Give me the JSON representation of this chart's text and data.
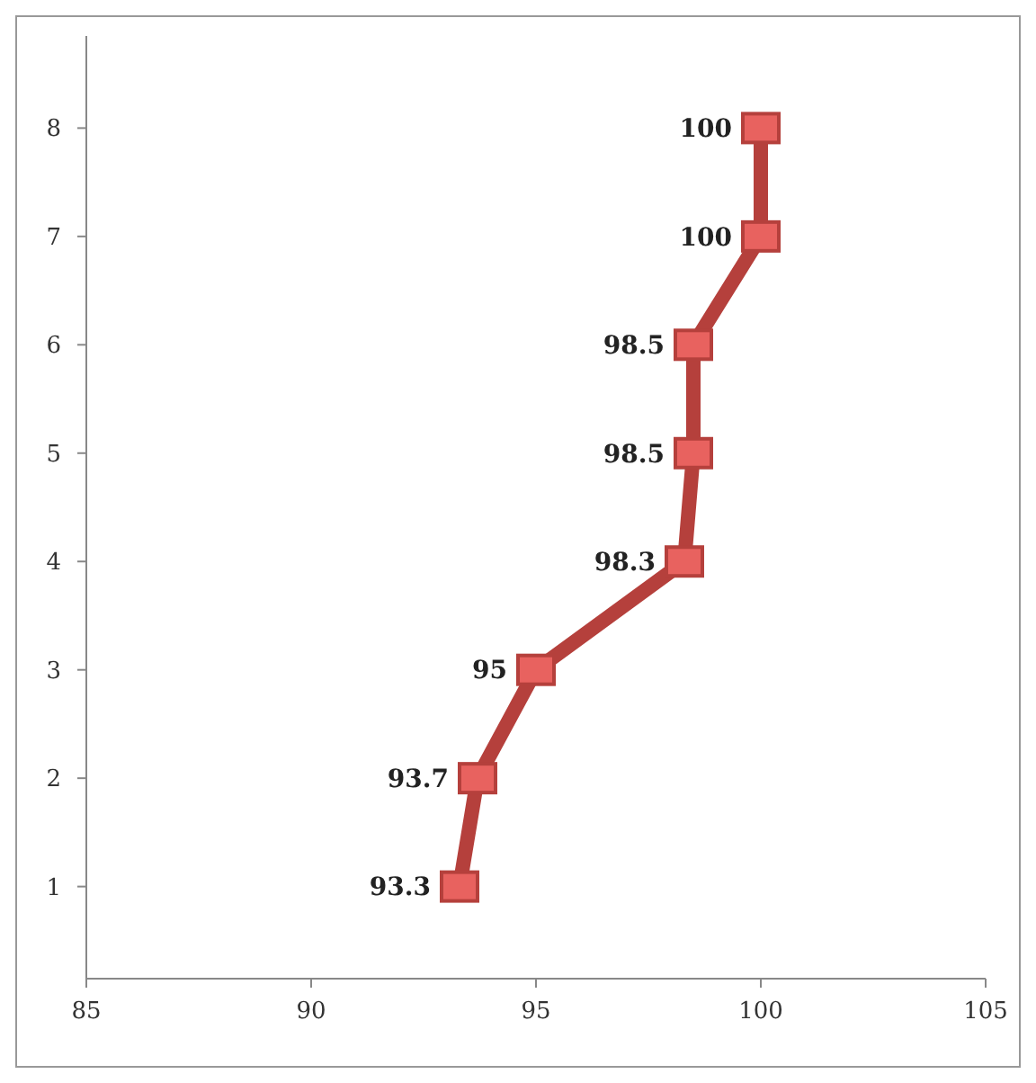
{
  "chart_data": {
    "type": "line",
    "orientation": "horizontal",
    "categories": [
      "8",
      "7",
      "6",
      "5",
      "4",
      "3",
      "2",
      "1"
    ],
    "series": [
      {
        "color": "#b5403c",
        "values": [
          100,
          100,
          98.5,
          98.5,
          98.3,
          95,
          93.7,
          93.3
        ]
      }
    ],
    "xlim": [
      85,
      105
    ],
    "xticks": [
      85,
      90,
      95,
      100,
      105
    ],
    "marker": "square",
    "data_labels": true,
    "grid": false
  }
}
